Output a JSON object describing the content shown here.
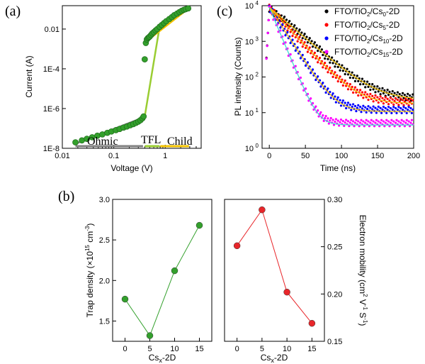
{
  "panels": {
    "a": {
      "label": "(a)",
      "chart_data": {
        "type": "scatter",
        "xscale": "log",
        "yscale": "log",
        "xlim": [
          0.01,
          5
        ],
        "ylim": [
          1e-08,
          0.15
        ],
        "xlabel": "Voltage (V)",
        "ylabel": "Current (A)",
        "xticks": [
          {
            "v": 0.01,
            "t": "0.01"
          },
          {
            "v": 0.1,
            "t": "0.1"
          },
          {
            "v": 1,
            "t": "1"
          }
        ],
        "yticks": [
          {
            "v": 1e-08,
            "t": "1E-8"
          },
          {
            "v": 1e-06,
            "t": "1E-6"
          },
          {
            "v": 0.0001,
            "t": "1E-4"
          },
          {
            "v": 0.01,
            "t": "0.01"
          }
        ],
        "region_labels": [
          "Ohmic",
          "TFL",
          "Child"
        ],
        "colors": {
          "data": "#33a02c",
          "ohmic": "#808080",
          "tfl": "#9acd32",
          "child": "#f2c200"
        },
        "series": [
          {
            "x": [
              0.018,
              0.024,
              0.03,
              0.038,
              0.048,
              0.06,
              0.075,
              0.09,
              0.11,
              0.13,
              0.155,
              0.18,
              0.21,
              0.24,
              0.27,
              0.3,
              0.33,
              0.36,
              0.38,
              0.4,
              0.42,
              0.44,
              0.46,
              0.48,
              0.5,
              0.53,
              0.56,
              0.6,
              0.65,
              0.7,
              0.78,
              0.86,
              0.95,
              1.05,
              1.2,
              1.35,
              1.5,
              1.7,
              1.9,
              2.1,
              2.3,
              2.5,
              2.8
            ],
            "y": [
              2e-08,
              2.5e-08,
              3e-08,
              3.6e-08,
              4.3e-08,
              5e-08,
              6e-08,
              7e-08,
              8.2e-08,
              9.4e-08,
              1.1e-07,
              1.25e-07,
              1.45e-07,
              1.65e-07,
              1.9e-07,
              2.2e-07,
              2.6e-07,
              3.2e-07,
              4e-07,
              0.0003,
              0.002,
              0.003,
              0.0035,
              0.0038,
              0.0042,
              0.005,
              0.006,
              0.007,
              0.0085,
              0.01,
              0.013,
              0.016,
              0.02,
              0.025,
              0.032,
              0.04,
              0.05,
              0.06,
              0.072,
              0.083,
              0.093,
              0.1,
              0.11
            ]
          }
        ],
        "fits": [
          {
            "name": "ohmic",
            "x": [
              0.017,
              0.38
            ],
            "y": [
              1.6e-08,
              3.6e-07
            ]
          },
          {
            "name": "tfl",
            "x": [
              0.4,
              0.8
            ],
            "y": [
              4e-07,
              0.02
            ]
          },
          {
            "name": "child",
            "x": [
              0.48,
              2.8
            ],
            "y": [
              0.003,
              0.105
            ]
          }
        ]
      }
    },
    "c": {
      "label": "(c)",
      "chart_data": {
        "type": "scatter",
        "yscale": "log",
        "xlim": [
          -10,
          200
        ],
        "ylim": [
          1,
          10000
        ],
        "xlabel": "Time (ns)",
        "ylabel": "PL intensity (Counts)",
        "xticks": [
          0,
          50,
          100,
          150,
          200
        ],
        "yticks": [
          {
            "v": 1,
            "t": "10"
          },
          {
            "v": 10,
            "t": "10"
          },
          {
            "v": 100,
            "t": "10"
          },
          {
            "v": 1000,
            "t": "10"
          },
          {
            "v": 10000,
            "t": "10"
          }
        ],
        "ytick_exponents": [
          "0",
          "1",
          "2",
          "3",
          "4"
        ],
        "legend": [
          {
            "pre": "FTO/TiO",
            "sub1": "2",
            "mid": "/Cs",
            "sub2": "0",
            "post": "-2D",
            "color": "#000000"
          },
          {
            "pre": "FTO/TiO",
            "sub1": "2",
            "mid": "/Cs",
            "sub2": "5",
            "post": "-2D",
            "color": "#ff0000"
          },
          {
            "pre": "FTO/TiO",
            "sub1": "2",
            "mid": "/Cs",
            "sub2": "10",
            "post": "-2D",
            "color": "#0000ff"
          },
          {
            "pre": "FTO/TiO",
            "sub1": "2",
            "mid": "/Cs",
            "sub2": "15",
            "post": "-2D",
            "color": "#ff00ff"
          }
        ],
        "legend_position": "top-right",
        "fit_color": "#f2c200",
        "fit_color_last": "#40e0d0",
        "series": [
          {
            "color": "#000000",
            "tau": 25,
            "floor": 25
          },
          {
            "color": "#ff0000",
            "tau": 20,
            "floor": 20
          },
          {
            "color": "#0000ff",
            "tau": 14,
            "floor": 12
          },
          {
            "color": "#ff00ff",
            "tau": 9,
            "floor": 5
          }
        ]
      }
    },
    "b": {
      "label": "(b)",
      "left": {
        "chart_data": {
          "type": "line",
          "x": [
            0,
            5,
            10,
            15
          ],
          "values": [
            1.77,
            1.32,
            2.12,
            2.68
          ],
          "xlim": [
            -2.5,
            17.5
          ],
          "ylim": [
            1.25,
            3.0
          ],
          "xticks": [
            0,
            5,
            10,
            15
          ],
          "yticks": [
            1.5,
            2.0,
            2.5,
            3.0
          ],
          "ytick_labels": [
            "1.5",
            "2.0",
            "2.5",
            "3.0"
          ],
          "xlabel_main": "Cs",
          "xlabel_sub": "x",
          "xlabel_post": "-2D",
          "ylabel_pre": "Trap density (×10",
          "ylabel_sup1": "15",
          "ylabel_mid": " cm",
          "ylabel_sup2": "-3",
          "ylabel_post": ")",
          "color": "#33a02c"
        }
      },
      "right": {
        "chart_data": {
          "type": "line",
          "x": [
            0,
            5,
            10,
            15
          ],
          "values": [
            0.251,
            0.289,
            0.202,
            0.169
          ],
          "xlim": [
            -2.5,
            17.5
          ],
          "ylim": [
            0.15,
            0.3
          ],
          "xticks": [
            0,
            5,
            10,
            15
          ],
          "yticks": [
            0.15,
            0.2,
            0.25,
            0.3
          ],
          "ytick_labels": [
            "0.15",
            "0.20",
            "0.25",
            "0.30"
          ],
          "xlabel_main": "Cs",
          "xlabel_sub": "x",
          "xlabel_post": "-2D",
          "ylabel_pre": "Electron mobility (cm",
          "ylabel_sup1": "2",
          "ylabel_mid": " V",
          "ylabel_sup2": "-1",
          "ylabel_mid2": " S",
          "ylabel_sup3": "-1",
          "ylabel_post": ")",
          "color": "#e8262a"
        }
      }
    }
  }
}
